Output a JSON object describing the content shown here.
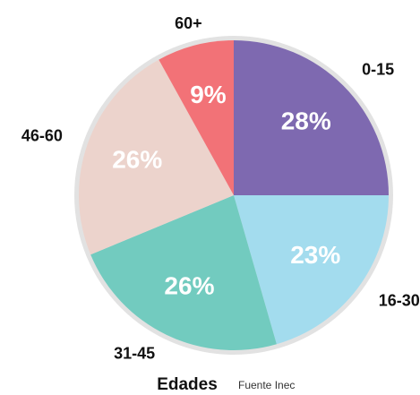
{
  "chart_data": {
    "type": "pie",
    "title": "Edades",
    "subtitle": "Fuente Inec",
    "categories": [
      "0-15",
      "16-30",
      "31-45",
      "46-60",
      "60+"
    ],
    "values": [
      28,
      23,
      26,
      26,
      9
    ],
    "value_labels": [
      "28%",
      "23%",
      "26%",
      "26%",
      "9%"
    ],
    "colors": [
      "#7e69b0",
      "#a3dcee",
      "#72cbbf",
      "#ecd3cc",
      "#f27277"
    ]
  }
}
